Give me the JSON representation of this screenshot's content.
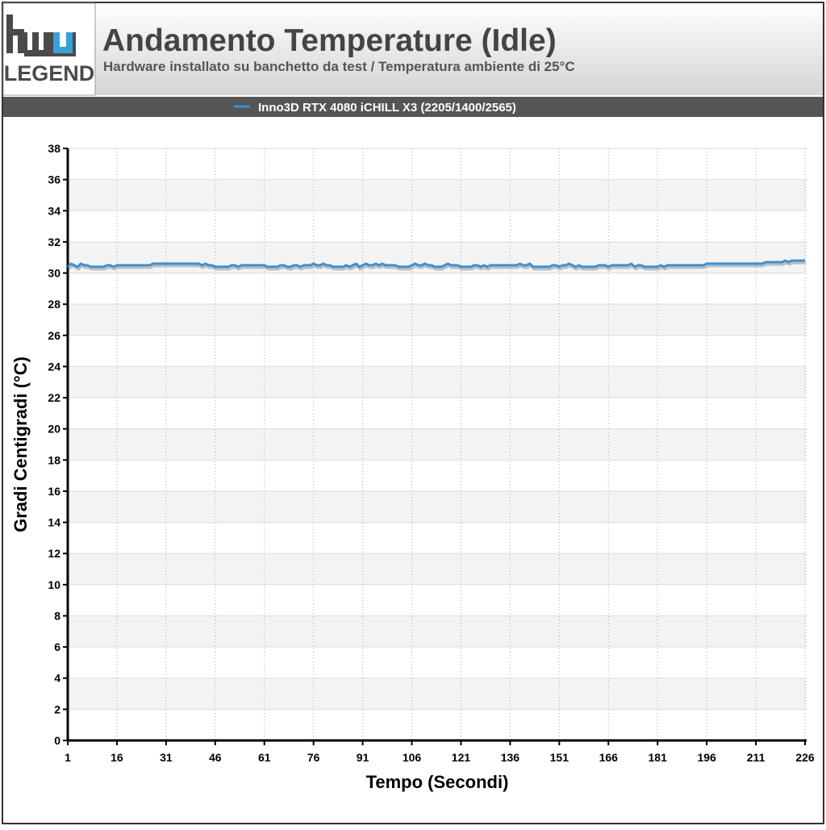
{
  "logo_text": "LEGEND",
  "chart_data": {
    "type": "line",
    "title": "Andamento Temperature (Idle)",
    "subtitle": "Hardware installato su banchetto da test / Temperatura ambiente di 25°C",
    "x_label": "Tempo (Secondi)",
    "y_label": "Gradi Centigradi (°C)",
    "x": [
      1,
      2,
      3,
      4,
      5,
      6,
      7,
      8,
      9,
      10,
      11,
      12,
      13,
      14,
      15,
      16,
      17,
      18,
      19,
      20,
      21,
      22,
      23,
      24,
      25,
      26,
      27,
      28,
      29,
      30,
      31,
      32,
      33,
      34,
      35,
      36,
      37,
      38,
      39,
      40,
      41,
      42,
      43,
      44,
      45,
      46,
      47,
      48,
      49,
      50,
      51,
      52,
      53,
      54,
      55,
      56,
      57,
      58,
      59,
      60,
      61,
      62,
      63,
      64,
      65,
      66,
      67,
      68,
      69,
      70,
      71,
      72,
      73,
      74,
      75,
      76,
      77,
      78,
      79,
      80,
      81,
      82,
      83,
      84,
      85,
      86,
      87,
      88,
      89,
      90,
      91,
      92,
      93,
      94,
      95,
      96,
      97,
      98,
      99,
      100,
      101,
      102,
      103,
      104,
      105,
      106,
      107,
      108,
      109,
      110,
      111,
      112,
      113,
      114,
      115,
      116,
      117,
      118,
      119,
      120,
      121,
      122,
      123,
      124,
      125,
      126,
      127,
      128,
      129,
      130,
      131,
      132,
      133,
      134,
      135,
      136,
      137,
      138,
      139,
      140,
      141,
      142,
      143,
      144,
      145,
      146,
      147,
      148,
      149,
      150,
      151,
      152,
      153,
      154,
      155,
      156,
      157,
      158,
      159,
      160,
      161,
      162,
      163,
      164,
      165,
      166,
      167,
      168,
      169,
      170,
      171,
      172,
      173,
      174,
      175,
      176,
      177,
      178,
      179,
      180,
      181,
      182,
      183,
      184,
      185,
      186,
      187,
      188,
      189,
      190,
      191,
      192,
      193,
      194,
      195,
      196,
      197,
      198,
      199,
      200,
      201,
      202,
      203,
      204,
      205,
      206,
      207,
      208,
      209,
      210,
      211,
      212,
      213,
      214,
      215,
      216,
      217,
      218,
      219,
      220,
      221,
      222,
      223,
      224,
      225,
      226
    ],
    "series": [
      {
        "name": "Inno3D RTX 4080 iCHILL X3 (2205/1400/2565)",
        "color": "#3d8fd0",
        "values": [
          30.4,
          30.6,
          30.5,
          30.4,
          30.6,
          30.5,
          30.5,
          30.4,
          30.4,
          30.4,
          30.4,
          30.4,
          30.5,
          30.5,
          30.4,
          30.5,
          30.5,
          30.5,
          30.5,
          30.5,
          30.5,
          30.5,
          30.5,
          30.5,
          30.5,
          30.5,
          30.6,
          30.6,
          30.6,
          30.6,
          30.6,
          30.6,
          30.6,
          30.6,
          30.6,
          30.6,
          30.6,
          30.6,
          30.6,
          30.6,
          30.6,
          30.5,
          30.6,
          30.5,
          30.5,
          30.4,
          30.4,
          30.4,
          30.4,
          30.4,
          30.5,
          30.5,
          30.4,
          30.5,
          30.5,
          30.5,
          30.5,
          30.5,
          30.5,
          30.5,
          30.5,
          30.4,
          30.4,
          30.4,
          30.4,
          30.5,
          30.5,
          30.4,
          30.4,
          30.5,
          30.5,
          30.4,
          30.5,
          30.5,
          30.5,
          30.6,
          30.5,
          30.5,
          30.6,
          30.5,
          30.5,
          30.4,
          30.4,
          30.4,
          30.4,
          30.5,
          30.4,
          30.5,
          30.6,
          30.4,
          30.5,
          30.6,
          30.5,
          30.5,
          30.6,
          30.5,
          30.6,
          30.5,
          30.5,
          30.5,
          30.5,
          30.4,
          30.4,
          30.4,
          30.4,
          30.5,
          30.6,
          30.5,
          30.5,
          30.6,
          30.5,
          30.5,
          30.4,
          30.4,
          30.4,
          30.5,
          30.6,
          30.5,
          30.5,
          30.5,
          30.4,
          30.4,
          30.4,
          30.4,
          30.5,
          30.5,
          30.4,
          30.5,
          30.4,
          30.5,
          30.5,
          30.5,
          30.5,
          30.5,
          30.5,
          30.5,
          30.5,
          30.5,
          30.6,
          30.5,
          30.5,
          30.6,
          30.4,
          30.4,
          30.4,
          30.4,
          30.4,
          30.4,
          30.5,
          30.5,
          30.4,
          30.5,
          30.5,
          30.6,
          30.5,
          30.4,
          30.5,
          30.4,
          30.4,
          30.4,
          30.4,
          30.4,
          30.5,
          30.5,
          30.5,
          30.4,
          30.5,
          30.5,
          30.5,
          30.5,
          30.5,
          30.5,
          30.6,
          30.4,
          30.5,
          30.5,
          30.4,
          30.4,
          30.4,
          30.4,
          30.4,
          30.5,
          30.4,
          30.5,
          30.5,
          30.5,
          30.5,
          30.5,
          30.5,
          30.5,
          30.5,
          30.5,
          30.5,
          30.5,
          30.5,
          30.6,
          30.6,
          30.6,
          30.6,
          30.6,
          30.6,
          30.6,
          30.6,
          30.6,
          30.6,
          30.6,
          30.6,
          30.6,
          30.6,
          30.6,
          30.6,
          30.6,
          30.6,
          30.7,
          30.7,
          30.7,
          30.7,
          30.7,
          30.7,
          30.8,
          30.7,
          30.8,
          30.8,
          30.8,
          30.8,
          30.8
        ]
      }
    ],
    "xlim": [
      1,
      226
    ],
    "xticks": [
      1,
      16,
      31,
      46,
      61,
      76,
      91,
      106,
      121,
      136,
      151,
      166,
      181,
      196,
      211,
      226
    ],
    "ylim": [
      0,
      38
    ],
    "yticks": [
      0,
      2,
      4,
      6,
      8,
      10,
      12,
      14,
      16,
      18,
      20,
      22,
      24,
      26,
      28,
      30,
      32,
      34,
      36,
      38
    ],
    "grid": true,
    "legend": "top"
  }
}
